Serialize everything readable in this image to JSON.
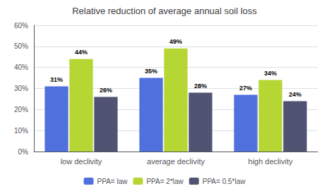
{
  "chart_data": {
    "type": "bar",
    "title": "Relative reduction of average annual soil loss",
    "categories": [
      "low declivity",
      "average declivity",
      "high declivity"
    ],
    "series": [
      {
        "name": "PPA= law",
        "values": [
          31,
          35,
          27
        ],
        "value_labels": [
          "31%",
          "35%",
          "27%"
        ]
      },
      {
        "name": "PPA= 2*law",
        "values": [
          44,
          49,
          34
        ],
        "value_labels": [
          "44%",
          "49%",
          "34%"
        ]
      },
      {
        "name": "PPA= 0.5*law",
        "values": [
          26,
          28,
          24
        ],
        "value_labels": [
          "26%",
          "28%",
          "24%"
        ]
      }
    ],
    "ylim": [
      0,
      60
    ],
    "yticks": [
      {
        "value": 0,
        "label": "0%"
      },
      {
        "value": 10,
        "label": "10%"
      },
      {
        "value": 20,
        "label": "20%"
      },
      {
        "value": 30,
        "label": "30%"
      },
      {
        "value": 40,
        "label": "40%"
      },
      {
        "value": 50,
        "label": "50%"
      },
      {
        "value": 60,
        "label": "60%"
      }
    ],
    "grid": true,
    "legend": "bottom",
    "data_labels": true
  }
}
